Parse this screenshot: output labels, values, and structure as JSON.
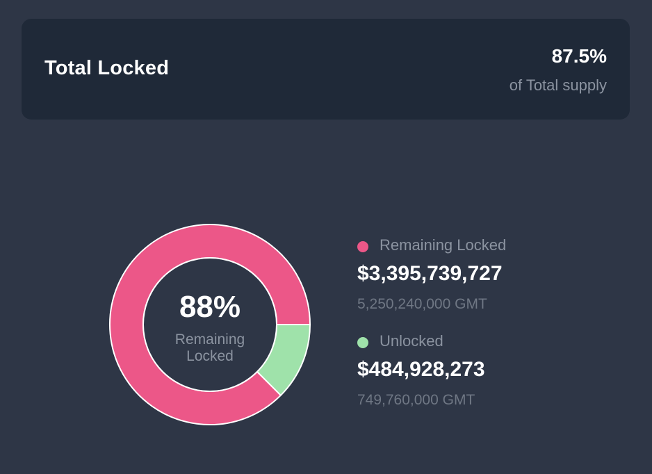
{
  "summary": {
    "title": "Total Locked",
    "percent": "87.5%",
    "subtitle": "of Total supply"
  },
  "colors": {
    "background": "#2e3646",
    "card": "#1f2938",
    "locked": "#ec5788",
    "unlocked": "#9fe2aa"
  },
  "chart_data": {
    "type": "pie",
    "donut": true,
    "center_value": "88%",
    "center_label": "Remaining Locked",
    "slices": [
      {
        "name": "Remaining Locked",
        "value": 5250240000,
        "percent": 87.5,
        "color": "#ec5788",
        "usd": "$3,395,739,727",
        "amount": "5,250,240,000 GMT"
      },
      {
        "name": "Unlocked",
        "value": 749760000,
        "percent": 12.5,
        "color": "#9fe2aa",
        "usd": "$484,928,273",
        "amount": "749,760,000 GMT"
      }
    ],
    "legend_position": "right"
  }
}
